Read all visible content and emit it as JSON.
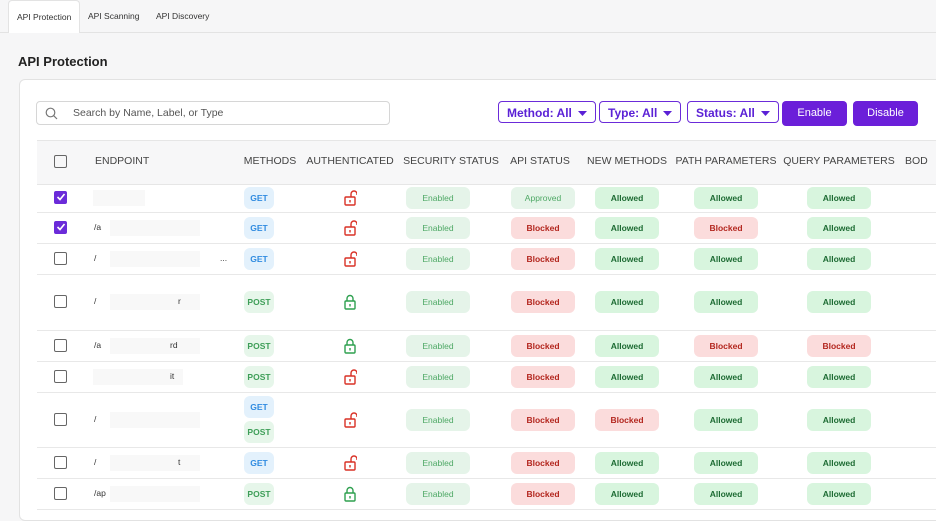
{
  "tabs": [
    "API Protection",
    "API Scanning",
    "API Discovery"
  ],
  "heading": "API Protection",
  "search_placeholder": "Search by Name, Label, or Type",
  "filters": [
    "Method: All",
    "Type: All",
    "Status: All"
  ],
  "buttons": [
    "Enable",
    "Disable"
  ],
  "table": {
    "columns": [
      "ENDPOINT",
      "METHODS",
      "AUTHENTICATED",
      "SECURITY STATUS",
      "API STATUS",
      "NEW METHODS",
      "PATH PARAMETERS",
      "QUERY PARAMETERS",
      "BOD"
    ],
    "rows": [
      {
        "checked": true,
        "methods": [
          "GET"
        ],
        "authenticated": false,
        "security_status": "Enabled",
        "api_status": "Approved",
        "new_methods": "Allowed",
        "path_parameters": "Allowed",
        "query_parameters": "Allowed"
      },
      {
        "checked": true,
        "endpoint": "/a",
        "methods": [
          "GET"
        ],
        "authenticated": false,
        "security_status": "Enabled",
        "api_status": "Blocked",
        "new_methods": "Allowed",
        "path_parameters": "Blocked",
        "query_parameters": "Allowed"
      },
      {
        "checked": false,
        "endpoint": "/",
        "endpoint_end": "...",
        "methods": [
          "GET"
        ],
        "authenticated": false,
        "security_status": "Enabled",
        "api_status": "Blocked",
        "new_methods": "Allowed",
        "path_parameters": "Allowed",
        "query_parameters": "Allowed"
      },
      {
        "checked": false,
        "endpoint": "/",
        "endpoint_end": "r",
        "methods": [
          "POST"
        ],
        "authenticated": true,
        "security_status": "Enabled",
        "api_status": "Blocked",
        "new_methods": "Allowed",
        "path_parameters": "Allowed",
        "query_parameters": "Allowed"
      },
      {
        "checked": false,
        "endpoint": "/a",
        "endpoint_end": "rd",
        "methods": [
          "POST"
        ],
        "authenticated": true,
        "security_status": "Enabled",
        "api_status": "Blocked",
        "new_methods": "Allowed",
        "path_parameters": "Blocked",
        "query_parameters": "Blocked"
      },
      {
        "checked": false,
        "endpoint_end": "it",
        "methods": [
          "POST"
        ],
        "authenticated": false,
        "security_status": "Enabled",
        "api_status": "Blocked",
        "new_methods": "Allowed",
        "path_parameters": "Allowed",
        "query_parameters": "Allowed"
      },
      {
        "checked": false,
        "endpoint": "/",
        "methods": [
          "GET",
          "POST"
        ],
        "authenticated": false,
        "security_status": "Enabled",
        "api_status": "Blocked",
        "new_methods": "Blocked",
        "path_parameters": "Allowed",
        "query_parameters": "Allowed"
      },
      {
        "checked": false,
        "endpoint": "/",
        "endpoint_end": "t",
        "methods": [
          "GET"
        ],
        "authenticated": false,
        "security_status": "Enabled",
        "api_status": "Blocked",
        "new_methods": "Allowed",
        "path_parameters": "Allowed",
        "query_parameters": "Allowed"
      },
      {
        "checked": false,
        "endpoint": "/ap",
        "methods": [
          "POST"
        ],
        "authenticated": true,
        "security_status": "Enabled",
        "api_status": "Blocked",
        "new_methods": "Allowed",
        "path_parameters": "Allowed",
        "query_parameters": "Allowed"
      }
    ]
  }
}
